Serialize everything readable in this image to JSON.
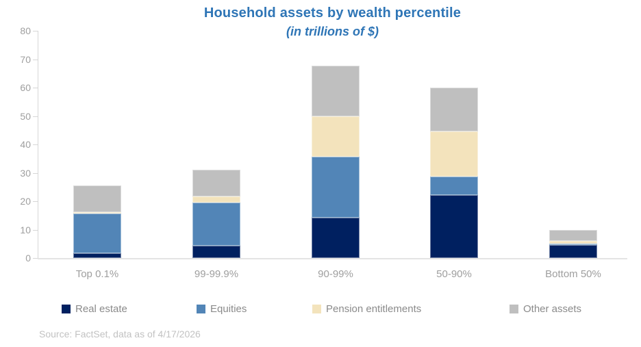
{
  "title": "Household assets by wealth percentile",
  "subtitle": "(in trillions of $)",
  "source_note": "Source: FactSet, data as of 4/17/2026",
  "colors": {
    "title_blue": "#2e75b6",
    "real_estate": "#002060",
    "equities": "#5285b7",
    "pension_entitlements": "#f3e3bc",
    "other_assets": "#bfbfbf",
    "axis_text": "#9e9e9e",
    "legend_text": "#8a8a8a",
    "source_text": "#c2c2c2",
    "axis_line": "#d6d6d6"
  },
  "chart_data": {
    "type": "bar",
    "stacked": true,
    "title": "Household assets by wealth percentile",
    "subtitle": "(in trillions of $)",
    "xlabel": "",
    "ylabel": "",
    "ylim": [
      0,
      80
    ],
    "yticks": [
      0,
      10,
      20,
      30,
      40,
      50,
      60,
      70,
      80
    ],
    "grid": false,
    "legend_position": "bottom",
    "categories": [
      "Top 0.1%",
      "99-99.9%",
      "90-99%",
      "50-90%",
      "Bottom 50%"
    ],
    "series": [
      {
        "name": "Real estate",
        "color": "#002060",
        "values": [
          1.7,
          4.4,
          14.2,
          22.2,
          4.5
        ]
      },
      {
        "name": "Equities",
        "color": "#5285b7",
        "values": [
          13.9,
          15.0,
          21.4,
          6.4,
          0.6
        ]
      },
      {
        "name": "Pension entitlements",
        "color": "#f3e3bc",
        "values": [
          0.6,
          2.4,
          14.3,
          16.1,
          1.0
        ]
      },
      {
        "name": "Other assets",
        "color": "#bfbfbf",
        "values": [
          9.3,
          9.2,
          17.9,
          15.3,
          3.9
        ]
      }
    ],
    "totals": [
      25.5,
      31.0,
      67.8,
      60.0,
      10.0
    ]
  }
}
